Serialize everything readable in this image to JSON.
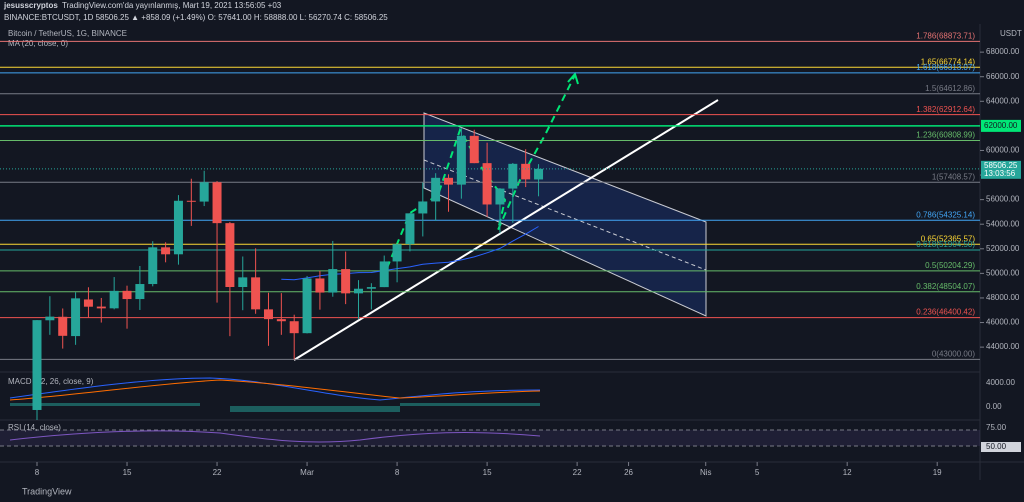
{
  "header": {
    "author": "jesusscryptos",
    "published": "TradingView.com'da yayınlanmış, Mart 19, 2021 13:56:05 +03",
    "symbol_line": "BINANCE:BTCUSDT, 1D 58506.25 ▲ +858.09 (+1.49%) O: 57641.00 H: 58888.00 L: 56270.74 C: 58506.25"
  },
  "chart_data": {
    "type": "candlestick",
    "title": "Bitcoin / TetherUS, 1G, BINANCE",
    "indicator": "MA (20, close, 0)",
    "y_unit": "USDT",
    "x": [
      "Feb 8",
      "Feb 9",
      "Feb 10",
      "Feb 11",
      "Feb 12",
      "Feb 13",
      "Feb 14",
      "Feb 15",
      "Feb 16",
      "Feb 17",
      "Feb 18",
      "Feb 19",
      "Feb 20",
      "Feb 21",
      "Feb 22",
      "Feb 23",
      "Feb 24",
      "Feb 25",
      "Feb 26",
      "Feb 27",
      "Feb 28",
      "Mar 1",
      "Mar 2",
      "Mar 3",
      "Mar 4",
      "Mar 5",
      "Mar 6",
      "Mar 7",
      "Mar 8",
      "Mar 9",
      "Mar 10",
      "Mar 11",
      "Mar 12",
      "Mar 13",
      "Mar 14",
      "Mar 15",
      "Mar 16",
      "Mar 17",
      "Mar 18",
      "Mar 19"
    ],
    "open": [
      38886,
      46184,
      46469,
      44898,
      47878,
      47298,
      47156,
      48580,
      47911,
      49133,
      52119,
      51552,
      55906,
      55841,
      57412,
      54087,
      48891,
      49676,
      47073,
      46277,
      46107,
      45135,
      49587,
      48440,
      50349,
      48374,
      48751,
      48882,
      50971,
      52375,
      54874,
      55851,
      57773,
      57221,
      61188,
      58968,
      55605,
      56900,
      58912,
      57641
    ],
    "high": [
      46203,
      48142,
      47145,
      48463,
      48870,
      48000,
      49700,
      49000,
      50600,
      52618,
      52530,
      56368,
      57700,
      58352,
      57508,
      54183,
      51374,
      52041,
      48424,
      48394,
      46638,
      49790,
      50200,
      52640,
      51773,
      49448,
      49200,
      51450,
      52402,
      54895,
      57387,
      58150,
      58058,
      61844,
      61683,
      60633,
      56938,
      58981,
      60100,
      58888
    ],
    "low": [
      38076,
      45000,
      43881,
      44187,
      46425,
      46000,
      47075,
      45500,
      47023,
      48947,
      50900,
      50710,
      53863,
      55477,
      47622,
      44892,
      47003,
      46712,
      44106,
      45000,
      43000,
      45115,
      47047,
      48100,
      47500,
      46300,
      47070,
      48882,
      49274,
      51789,
      53005,
      54269,
      55013,
      56078,
      58963,
      54600,
      53271,
      54120,
      57023,
      56270.74
    ],
    "close": [
      46196,
      46481,
      44919,
      47969,
      47288,
      47153,
      48577,
      47911,
      49133,
      52119,
      51552,
      55906,
      55841,
      57412,
      54087,
      48891,
      49676,
      47073,
      46277,
      46107,
      45135,
      49587,
      48440,
      50349,
      48374,
      48751,
      48882,
      50971,
      52375,
      54884,
      55851,
      57773,
      57221,
      61188,
      58968,
      55605,
      56900,
      58912,
      57648,
      58506.25
    ],
    "up_color": "#26a69a",
    "down_color": "#ef5350",
    "ma_color": "#2962ff",
    "ylim": [
      41000,
      69800
    ],
    "yticks": [
      {
        "value": 44000,
        "label": "44000.00"
      },
      {
        "value": 46000,
        "label": "46000.00"
      },
      {
        "value": 48000,
        "label": "48000.00"
      },
      {
        "value": 50000,
        "label": "50000.00"
      },
      {
        "value": 52000,
        "label": "52000.00"
      },
      {
        "value": 54000,
        "label": "54000.00"
      },
      {
        "value": 56000,
        "label": "56000.00"
      },
      {
        "value": 58000,
        "label": "58000.00"
      },
      {
        "value": 60000,
        "label": "60000.00"
      },
      {
        "value": 64000,
        "label": "64000.00"
      },
      {
        "value": 66000,
        "label": "66000.00"
      },
      {
        "value": 68000,
        "label": "68000.00"
      }
    ],
    "xticks": [
      {
        "value": "Feb 8",
        "label": "8"
      },
      {
        "value": "Feb 15",
        "label": "15"
      },
      {
        "value": "Feb 22",
        "label": "22"
      },
      {
        "value": "Mar 1",
        "label": "Mar"
      },
      {
        "value": "Mar 8",
        "label": "8"
      },
      {
        "value": "Mar 15",
        "label": "15"
      },
      {
        "value": "Mar 22",
        "label": "22"
      },
      {
        "value": "Mar 26",
        "label": "26"
      },
      {
        "value": "Apr 1",
        "label": "Nis"
      },
      {
        "value": "Apr 5",
        "label": "5"
      },
      {
        "value": "Apr 12",
        "label": "12"
      },
      {
        "value": "Apr 19",
        "label": "19"
      }
    ],
    "levels": [
      {
        "value": 68873.71,
        "label": "1.786(68873.71)",
        "color": "#e57373"
      },
      {
        "value": 66774.14,
        "label": "1.65(66774.14)",
        "color": "#fdd835"
      },
      {
        "value": 66313.07,
        "label": "1.618(66313.07)",
        "color": "#42a5f5"
      },
      {
        "value": 64612.86,
        "label": "1.5(64612.86)",
        "color": "#787b86"
      },
      {
        "value": 62912.64,
        "label": "1.382(62912.64)",
        "color": "#ef5350"
      },
      {
        "value": 60808.99,
        "label": "1.236(60808.99)",
        "color": "#66bb6a"
      },
      {
        "value": 57408.57,
        "label": "1(57408.57)",
        "color": "#787b86"
      },
      {
        "value": 54325.14,
        "label": "0.786(54325.14)",
        "color": "#42a5f5"
      },
      {
        "value": 52365.57,
        "label": "0.65(52365.57)",
        "color": "#fdd835"
      },
      {
        "value": 51904.5,
        "label": "0.618(51904.50)",
        "color": "#26a69a"
      },
      {
        "value": 50204.29,
        "label": "0.5(50204.29)",
        "color": "#66bb6a"
      },
      {
        "value": 48504.07,
        "label": "0.382(48504.07)",
        "color": "#66bb6a"
      },
      {
        "value": 46400.42,
        "label": "0.236(46400.42)",
        "color": "#ef5350"
      },
      {
        "value": 43000,
        "label": "0(43000.00)",
        "color": "#787b86"
      }
    ],
    "horizontal_line": {
      "value": 62000,
      "label": "62000.00",
      "color": "#00e676"
    },
    "last_price": {
      "value": 58506.25,
      "label": "58506.25",
      "countdown": "13:03:56"
    },
    "macd": {
      "title": "MACD (12, 26, close, 9)",
      "ticks": [
        "4000.00",
        "0.00"
      ]
    },
    "rsi": {
      "title": "RSI (14, close)",
      "ticks": [
        "75.00",
        "50.00"
      ]
    }
  },
  "footer": {
    "brand": "TradingView"
  }
}
